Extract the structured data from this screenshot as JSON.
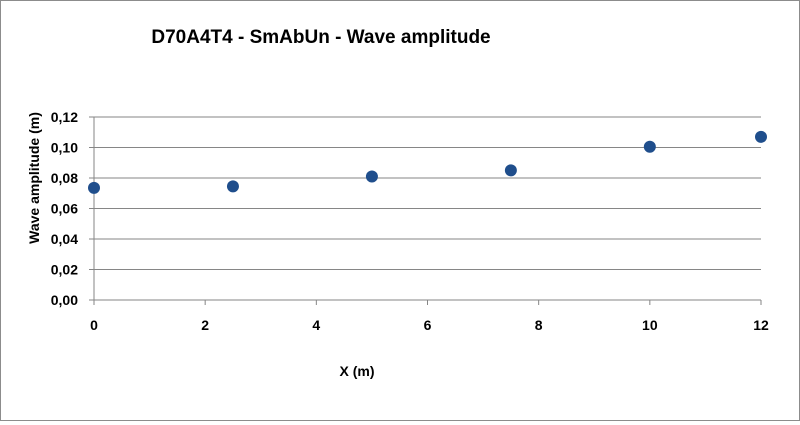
{
  "chart_data": {
    "type": "scatter",
    "title": "D70A4T4  - SmAbUn - Wave amplitude",
    "xlabel": "X (m)",
    "ylabel": "Wave amplitude (m)",
    "xlim": [
      0,
      12
    ],
    "ylim": [
      0,
      0.12
    ],
    "x_ticks": [
      "0",
      "2",
      "4",
      "6",
      "8",
      "10",
      "12"
    ],
    "y_ticks": [
      "0,00",
      "0,02",
      "0,04",
      "0,06",
      "0,08",
      "0,10",
      "0,12"
    ],
    "grid": "horizontal",
    "legend": "none",
    "marker_color": "#1f4e8c",
    "series": [
      {
        "x": [
          0,
          2.5,
          5,
          7.5,
          10,
          12
        ],
        "y": [
          0.0735,
          0.0745,
          0.081,
          0.085,
          0.1005,
          0.107
        ]
      }
    ]
  }
}
